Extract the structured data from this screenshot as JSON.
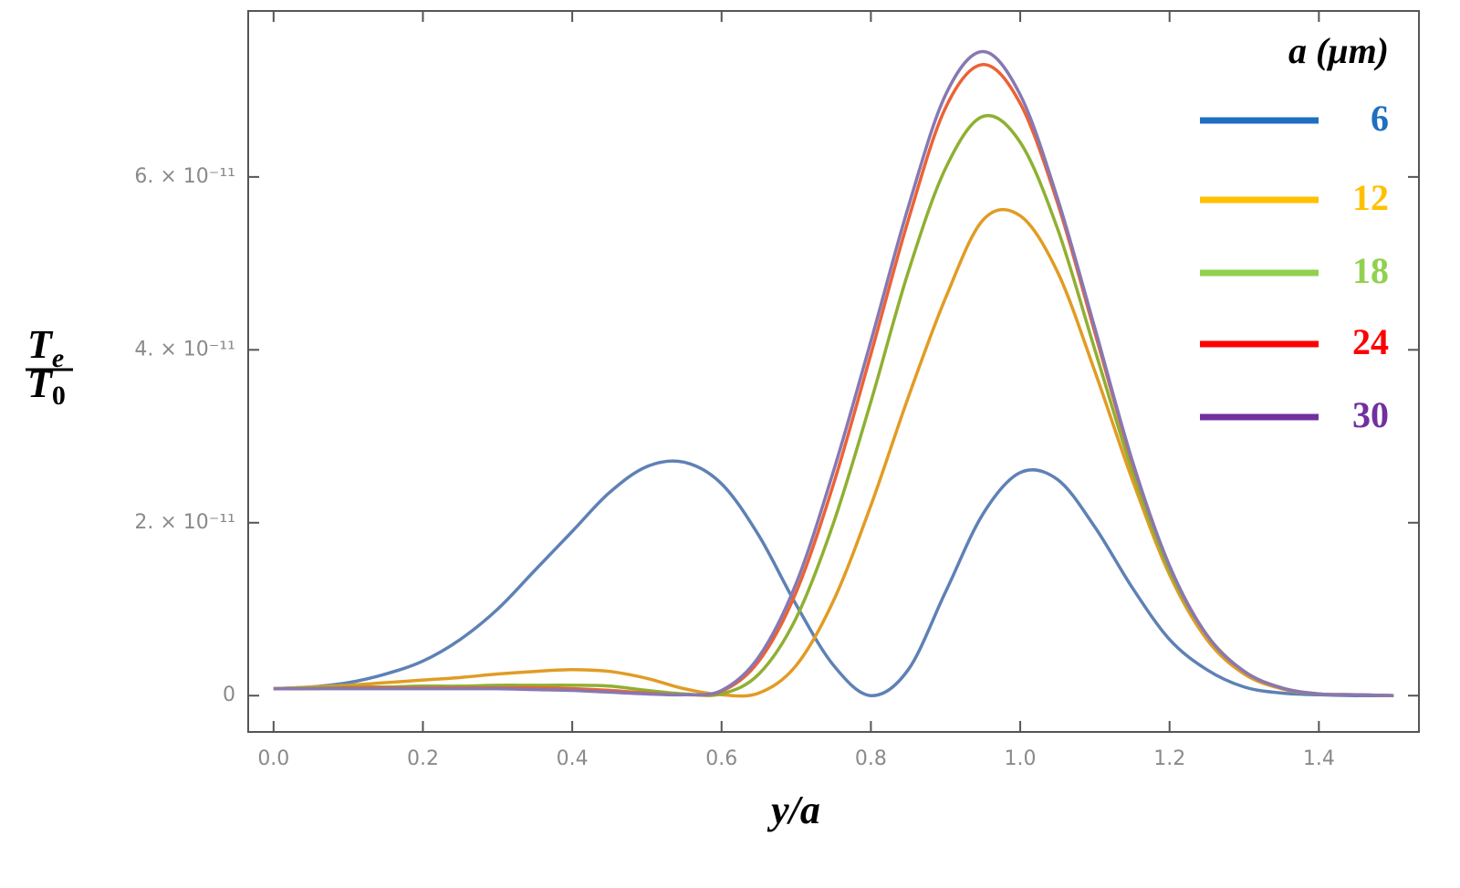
{
  "chart_data": {
    "type": "line",
    "xlabel": "y/a",
    "ylabel": {
      "numerator": [
        "T",
        "e"
      ],
      "denominator": [
        "T",
        "0"
      ]
    },
    "legend_title": "a (μm)",
    "legend": "upper right",
    "x": [
      0,
      0.05,
      0.1,
      0.15,
      0.2,
      0.25,
      0.3,
      0.35,
      0.4,
      0.45,
      0.5,
      0.55,
      0.6,
      0.65,
      0.7,
      0.75,
      0.8,
      0.85,
      0.9,
      0.95,
      1.0,
      1.05,
      1.1,
      1.15,
      1.2,
      1.25,
      1.3,
      1.35,
      1.4,
      1.45,
      1.5
    ],
    "series": [
      {
        "name": "6",
        "color": "#5e81b5",
        "legend_color": "#1f6fc0",
        "values": [
          8e-13,
          1e-12,
          1.5e-12,
          2.5e-12,
          4e-12,
          6.5e-12,
          1e-11,
          1.45e-11,
          1.9e-11,
          2.35e-11,
          2.65e-11,
          2.7e-11,
          2.45e-11,
          1.85e-11,
          1.05e-11,
          3.5e-12,
          0,
          3e-12,
          1.2e-11,
          2.1e-11,
          2.58e-11,
          2.5e-11,
          1.95e-11,
          1.25e-11,
          6.5e-12,
          3e-12,
          1e-12,
          3e-13,
          1e-13,
          0,
          0
        ]
      },
      {
        "name": "12",
        "color": "#e19c24",
        "legend_color": "#ffc000",
        "values": [
          8e-13,
          1e-12,
          1.2e-12,
          1.5e-12,
          1.8e-12,
          2.1e-12,
          2.5e-12,
          2.8e-12,
          3e-12,
          2.8e-12,
          2e-12,
          8e-13,
          1e-13,
          3e-13,
          3.5e-12,
          1.1e-11,
          2.2e-11,
          3.45e-11,
          4.6e-11,
          5.5e-11,
          5.55e-11,
          4.9e-11,
          3.75e-11,
          2.5e-11,
          1.4e-11,
          6.5e-12,
          2.5e-12,
          8e-13,
          2e-13,
          1e-13,
          0
        ]
      },
      {
        "name": "18",
        "color": "#8fb032",
        "legend_color": "#92d050",
        "values": [
          8e-13,
          9e-13,
          1e-12,
          1e-12,
          1.1e-12,
          1.1e-12,
          1.2e-12,
          1.2e-12,
          1.2e-12,
          1.1e-12,
          6e-13,
          2e-13,
          2e-13,
          2.5e-12,
          9e-12,
          2e-11,
          3.4e-11,
          4.9e-11,
          6.1e-11,
          6.7e-11,
          6.4e-11,
          5.4e-11,
          4e-11,
          2.6e-11,
          1.45e-11,
          7e-12,
          2.8e-12,
          9e-13,
          2e-13,
          1e-13,
          0
        ]
      },
      {
        "name": "24",
        "color": "#eb6235",
        "legend_color": "#ff0000",
        "values": [
          8e-13,
          8e-13,
          9e-13,
          9e-13,
          9e-13,
          9e-13,
          9e-13,
          9e-13,
          8e-13,
          6e-13,
          3e-13,
          1e-13,
          5e-13,
          4e-12,
          1.2e-11,
          2.45e-11,
          3.95e-11,
          5.5e-11,
          6.8e-11,
          7.3e-11,
          6.85e-11,
          5.7e-11,
          4.2e-11,
          2.7e-11,
          1.5e-11,
          7e-12,
          2.8e-12,
          9e-13,
          2e-13,
          1e-13,
          0
        ]
      },
      {
        "name": "30",
        "color": "#8778b3",
        "legend_color": "#7030a0",
        "values": [
          8e-13,
          8e-13,
          8e-13,
          8e-13,
          8e-13,
          8e-13,
          8e-13,
          7e-13,
          6e-13,
          4e-13,
          2e-13,
          1e-13,
          6e-13,
          4.5e-12,
          1.3e-11,
          2.6e-11,
          4.1e-11,
          5.65e-11,
          6.95e-11,
          7.45e-11,
          6.95e-11,
          5.75e-11,
          4.25e-11,
          2.72e-11,
          1.5e-11,
          7e-12,
          2.8e-12,
          9e-13,
          2e-13,
          1e-13,
          0
        ]
      }
    ],
    "xlim": [
      -0.034,
      1.534
    ],
    "ylim": [
      -4.2e-12,
      7.92e-11
    ],
    "xticks": [
      {
        "value": 0,
        "label": "0.0"
      },
      0.2,
      0.4,
      0.6,
      0.8,
      {
        "value": 1,
        "label": "1.0"
      },
      1.2,
      1.4
    ],
    "yticks": [
      0,
      {
        "value": 2e-11,
        "label": "2. × 10⁻¹¹"
      },
      {
        "value": 4e-11,
        "label": "4. × 10⁻¹¹"
      },
      {
        "value": 6e-11,
        "label": "6. × 10⁻¹¹"
      }
    ],
    "grid": false
  }
}
